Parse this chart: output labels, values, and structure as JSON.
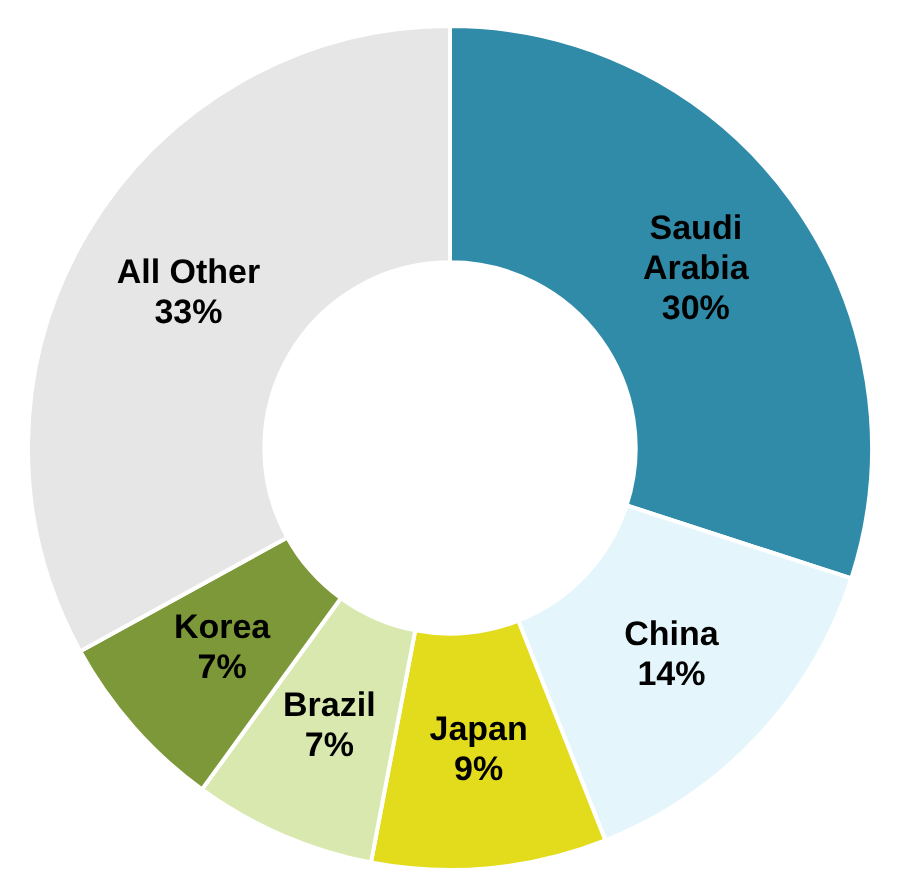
{
  "chart_data": {
    "type": "donut",
    "categories": [
      "Saudi Arabia",
      "China",
      "Japan",
      "Brazil",
      "Korea",
      "All Other"
    ],
    "values": [
      30,
      14,
      9,
      7,
      7,
      33
    ],
    "colors": [
      "#2f8ba8",
      "#e4f6fc",
      "#e3dc1c",
      "#d8e8ae",
      "#7d9838",
      "#e6e6e6"
    ],
    "value_labels": [
      "30%",
      "14%",
      "9%",
      "7%",
      "7%",
      "33%"
    ],
    "legend": false
  }
}
